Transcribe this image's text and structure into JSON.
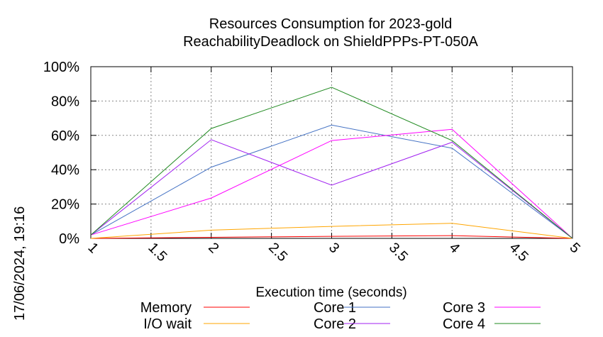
{
  "chart_data": {
    "type": "line",
    "title_line1": "Resources Consumption for 2023-gold",
    "title_line2": "ReachabilityDeadlock on ShieldPPPs-PT-050A",
    "xlabel": "Execution time (seconds)",
    "ylabel": "",
    "timestamp": "17/06/2024, 19:16",
    "xlim": [
      1,
      5
    ],
    "ylim": [
      0,
      100
    ],
    "x_ticks": [
      1,
      1.5,
      2,
      2.5,
      3,
      3.5,
      4,
      4.5,
      5
    ],
    "x_tick_labels": [
      "1",
      "1.5",
      "2",
      "2.5",
      "3",
      "3.5",
      "4",
      "4.5",
      "5"
    ],
    "y_ticks": [
      0,
      20,
      40,
      60,
      80,
      100
    ],
    "y_tick_labels": [
      "0%",
      "20%",
      "40%",
      "60%",
      "80%",
      "100%"
    ],
    "grid": true,
    "legend_position": "bottom",
    "x": [
      1,
      2,
      3,
      4,
      5
    ],
    "series": [
      {
        "name": "Memory",
        "color": "#ff0000",
        "values": [
          0,
          0.6,
          1.2,
          1.6,
          0
        ]
      },
      {
        "name": "I/O wait",
        "color": "#ffa500",
        "values": [
          0,
          4.8,
          7,
          8.8,
          0
        ]
      },
      {
        "name": "Core 1",
        "color": "#4472c4",
        "values": [
          2,
          41.5,
          66,
          52.5,
          0
        ]
      },
      {
        "name": "Core 2",
        "color": "#a020f0",
        "values": [
          2,
          57.5,
          31,
          56,
          0
        ]
      },
      {
        "name": "Core 3",
        "color": "#ff00ff",
        "values": [
          2,
          23.5,
          57,
          63.5,
          0
        ]
      },
      {
        "name": "Core 4",
        "color": "#228b22",
        "values": [
          2,
          64,
          88,
          57,
          0
        ]
      }
    ]
  }
}
